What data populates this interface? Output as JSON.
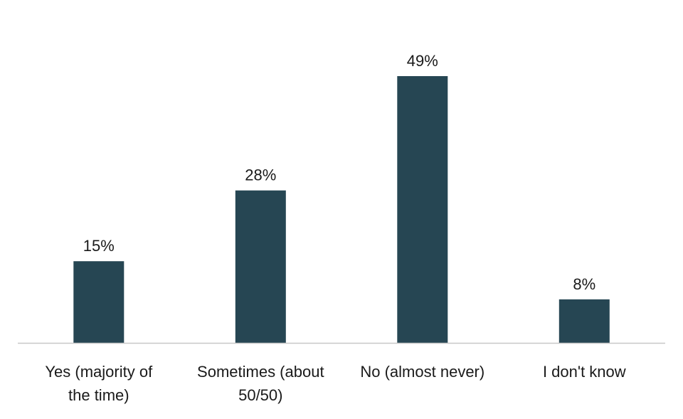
{
  "chart_data": {
    "type": "bar",
    "categories": [
      [
        "Yes (majority of",
        "the time)"
      ],
      [
        "Sometimes (about",
        "50/50)"
      ],
      [
        "No (almost never)"
      ],
      [
        "I don't know"
      ]
    ],
    "values": [
      15,
      28,
      49,
      8
    ],
    "value_labels": [
      "15%",
      "28%",
      "49%",
      "8%"
    ],
    "ylim": [
      0,
      50
    ],
    "grid": false,
    "legend": "none",
    "bar_color": "#264653",
    "axis_color": "#c8c8c8"
  }
}
